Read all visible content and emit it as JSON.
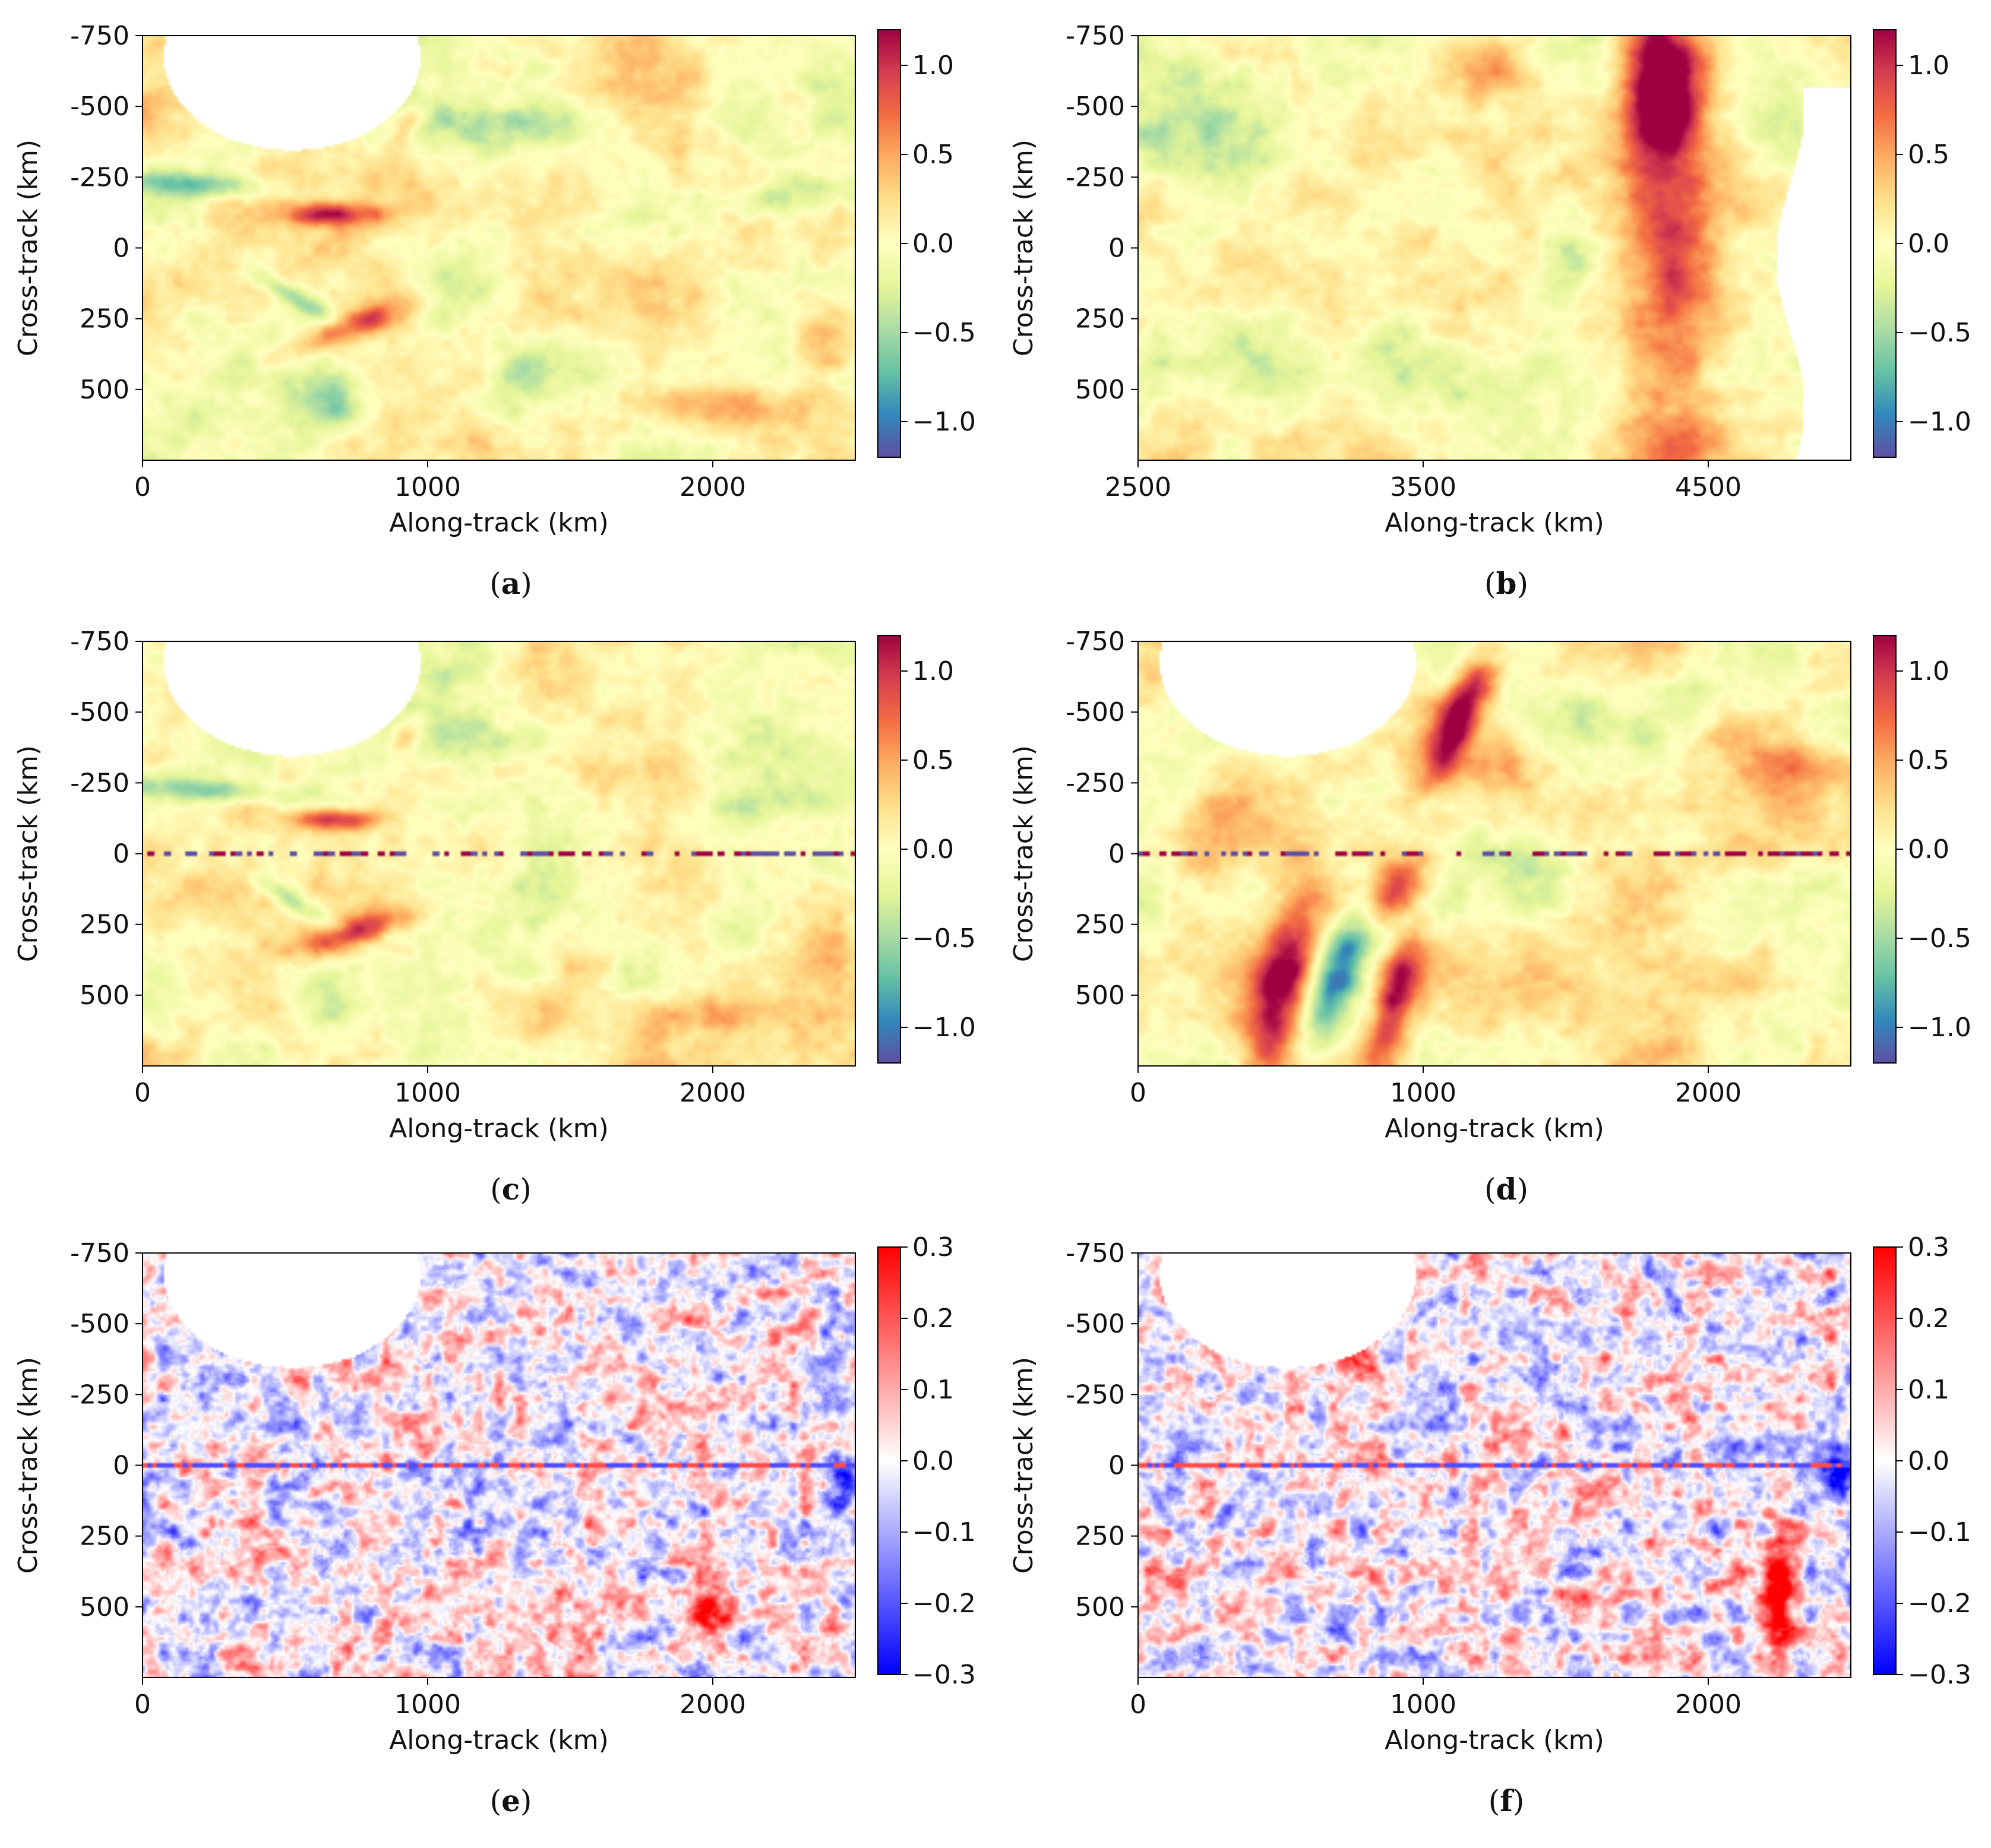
{
  "figure": {
    "panels": [
      {
        "letter": "a"
      },
      {
        "letter": "b"
      },
      {
        "letter": "c"
      },
      {
        "letter": "d"
      },
      {
        "letter": "e"
      },
      {
        "letter": "f"
      }
    ]
  },
  "chart_data": [
    {
      "type": "heatmap",
      "panel": "a",
      "caption": "(a)",
      "xlabel": "Along-track (km)",
      "ylabel": "Cross-track (km)",
      "xlim": [
        0,
        2500
      ],
      "ylim": [
        -750,
        750
      ],
      "yaxis_inverted": true,
      "xticks": [
        0,
        1000,
        2000
      ],
      "xtick_labels": [
        "0",
        "1000",
        "2000"
      ],
      "yticks": [
        -750,
        -500,
        -250,
        0,
        250,
        500
      ],
      "ytick_labels": [
        "-750",
        "-500",
        "-250",
        "0",
        "250",
        "500"
      ],
      "colormap": "Spectral_r",
      "clim": [
        -1.2,
        1.2
      ],
      "colorbar_ticks": [
        1.0,
        0.5,
        0.0,
        -0.5,
        -1.0
      ],
      "colorbar_tick_labels": [
        "1.0",
        "0.5",
        "0.0",
        "−0.5",
        "−1.0"
      ],
      "masked_region": "top-left",
      "nadir_gap": false
    },
    {
      "type": "heatmap",
      "panel": "b",
      "caption": "(b)",
      "xlabel": "Along-track (km)",
      "ylabel": "Cross-track (km)",
      "xlim": [
        2500,
        5000
      ],
      "ylim": [
        -750,
        750
      ],
      "yaxis_inverted": true,
      "xticks": [
        2500,
        3500,
        4500
      ],
      "xtick_labels": [
        "2500",
        "3500",
        "4500"
      ],
      "yticks": [
        -750,
        -500,
        -250,
        0,
        250,
        500
      ],
      "ytick_labels": [
        "-750",
        "-500",
        "-250",
        "0",
        "250",
        "500"
      ],
      "colormap": "Spectral_r",
      "clim": [
        -1.2,
        1.2
      ],
      "colorbar_ticks": [
        1.0,
        0.5,
        0.0,
        -0.5,
        -1.0
      ],
      "colorbar_tick_labels": [
        "1.0",
        "0.5",
        "0.0",
        "−0.5",
        "−1.0"
      ],
      "masked_region": "right-edge",
      "nadir_gap": false
    },
    {
      "type": "heatmap",
      "panel": "c",
      "caption": "(c)",
      "xlabel": "Along-track (km)",
      "ylabel": "Cross-track (km)",
      "xlim": [
        0,
        2500
      ],
      "ylim": [
        -750,
        750
      ],
      "yaxis_inverted": true,
      "xticks": [
        0,
        1000,
        2000
      ],
      "xtick_labels": [
        "0",
        "1000",
        "2000"
      ],
      "yticks": [
        -750,
        -500,
        -250,
        0,
        250,
        500
      ],
      "ytick_labels": [
        "-750",
        "-500",
        "-250",
        "0",
        "250",
        "500"
      ],
      "colormap": "Spectral_r",
      "clim": [
        -1.2,
        1.2
      ],
      "colorbar_ticks": [
        1.0,
        0.5,
        0.0,
        -0.5,
        -1.0
      ],
      "colorbar_tick_labels": [
        "1.0",
        "0.5",
        "0.0",
        "−0.5",
        "−1.0"
      ],
      "masked_region": "top-left",
      "nadir_gap": true
    },
    {
      "type": "heatmap",
      "panel": "d",
      "caption": "(d)",
      "xlabel": "Along-track (km)",
      "ylabel": "Cross-track (km)",
      "xlim": [
        0,
        2500
      ],
      "ylim": [
        -750,
        750
      ],
      "yaxis_inverted": true,
      "xticks": [
        0,
        1000,
        2000
      ],
      "xtick_labels": [
        "0",
        "1000",
        "2000"
      ],
      "yticks": [
        -750,
        -500,
        -250,
        0,
        250,
        500
      ],
      "ytick_labels": [
        "-750",
        "-500",
        "-250",
        "0",
        "250",
        "500"
      ],
      "colormap": "Spectral_r",
      "clim": [
        -1.2,
        1.2
      ],
      "colorbar_ticks": [
        1.0,
        0.5,
        0.0,
        -0.5,
        -1.0
      ],
      "colorbar_tick_labels": [
        "1.0",
        "0.5",
        "0.0",
        "−0.5",
        "−1.0"
      ],
      "masked_region": "top-left",
      "nadir_gap": true
    },
    {
      "type": "heatmap",
      "panel": "e",
      "caption": "(e)",
      "xlabel": "Along-track (km)",
      "ylabel": "Cross-track (km)",
      "xlim": [
        0,
        2500
      ],
      "ylim": [
        -750,
        750
      ],
      "yaxis_inverted": true,
      "xticks": [
        0,
        1000,
        2000
      ],
      "xtick_labels": [
        "0",
        "1000",
        "2000"
      ],
      "yticks": [
        -750,
        -500,
        -250,
        0,
        250,
        500
      ],
      "ytick_labels": [
        "-750",
        "-500",
        "-250",
        "0",
        "250",
        "500"
      ],
      "colormap": "bwr",
      "clim": [
        -0.3,
        0.3
      ],
      "colorbar_ticks": [
        0.3,
        0.2,
        0.1,
        0.0,
        -0.1,
        -0.2,
        -0.3
      ],
      "colorbar_tick_labels": [
        "0.3",
        "0.2",
        "0.1",
        "0.0",
        "−0.1",
        "−0.2",
        "−0.3"
      ],
      "masked_region": "top-left",
      "nadir_gap": true
    },
    {
      "type": "heatmap",
      "panel": "f",
      "caption": "(f)",
      "xlabel": "Along-track (km)",
      "ylabel": "Cross-track (km)",
      "xlim": [
        0,
        2500
      ],
      "ylim": [
        -750,
        750
      ],
      "yaxis_inverted": true,
      "xticks": [
        0,
        1000,
        2000
      ],
      "xtick_labels": [
        "0",
        "1000",
        "2000"
      ],
      "yticks": [
        -750,
        -500,
        -250,
        0,
        250,
        500
      ],
      "ytick_labels": [
        "-750",
        "-500",
        "-250",
        "0",
        "250",
        "500"
      ],
      "colormap": "bwr",
      "clim": [
        -0.3,
        0.3
      ],
      "colorbar_ticks": [
        0.3,
        0.2,
        0.1,
        0.0,
        -0.1,
        -0.2,
        -0.3
      ],
      "colorbar_tick_labels": [
        "0.3",
        "0.2",
        "0.1",
        "0.0",
        "−0.1",
        "−0.2",
        "−0.3"
      ],
      "masked_region": "top-left",
      "nadir_gap": true
    }
  ]
}
